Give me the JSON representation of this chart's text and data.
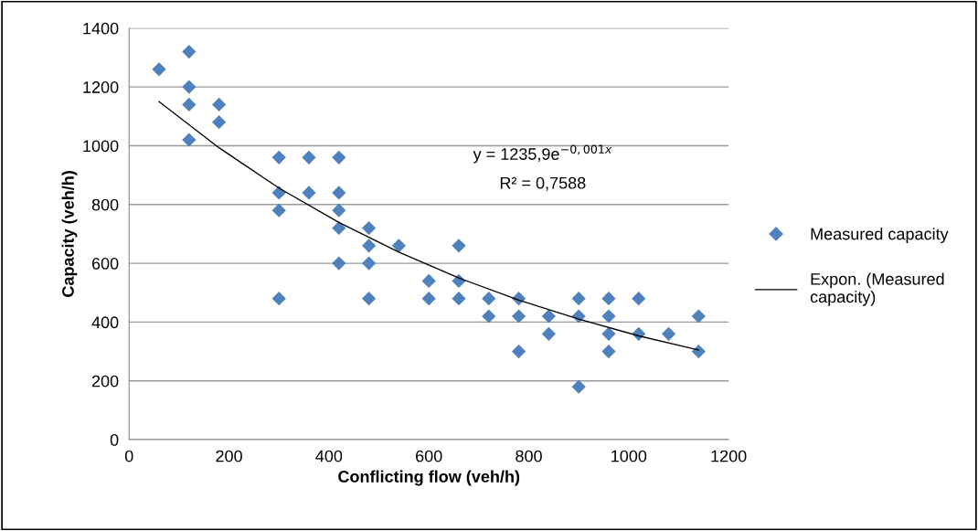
{
  "chart_data": {
    "type": "scatter",
    "xlabel": "Conflicting flow (veh/h)",
    "ylabel": "Capacity (veh/h)",
    "xlim": [
      0,
      1200
    ],
    "xticks": [
      0,
      200,
      400,
      600,
      800,
      1000,
      1200
    ],
    "ylim": [
      0,
      1400
    ],
    "yticks": [
      0,
      200,
      400,
      600,
      800,
      1000,
      1200,
      1400
    ],
    "grid": "y",
    "legend": "right",
    "marker": "diamond",
    "annotations": [
      "y = 1235,9e$^{−0,001x}$",
      "R² = 0,7588"
    ],
    "series": [
      {
        "name": "Measured capacity",
        "color": "#4f81bd",
        "x": [
          60,
          120,
          120,
          120,
          120,
          180,
          180,
          300,
          300,
          300,
          300,
          360,
          360,
          420,
          420,
          420,
          420,
          420,
          480,
          480,
          480,
          480,
          540,
          600,
          600,
          660,
          660,
          660,
          720,
          720,
          780,
          780,
          780,
          840,
          840,
          900,
          900,
          900,
          960,
          960,
          960,
          960,
          1020,
          1020,
          1080,
          1140,
          1140
        ],
        "values": [
          1260,
          1320,
          1200,
          1140,
          1020,
          1140,
          1080,
          960,
          840,
          780,
          480,
          960,
          840,
          960,
          840,
          780,
          720,
          600,
          720,
          660,
          600,
          480,
          660,
          540,
          480,
          660,
          540,
          480,
          480,
          420,
          480,
          420,
          300,
          420,
          360,
          480,
          420,
          180,
          480,
          420,
          360,
          300,
          480,
          360,
          360,
          420,
          300
        ]
      },
      {
        "name": "Expon. (Measured\ncapacity)",
        "color": "#000000",
        "type": "line",
        "marker": "none",
        "line_style": "solid",
        "x": [
          60,
          180,
          300,
          420,
          540,
          660,
          780,
          900,
          1020,
          1140
        ],
        "values": [
          1150,
          993,
          856,
          739,
          638,
          550,
          475,
          410,
          353,
          305
        ]
      }
    ]
  }
}
